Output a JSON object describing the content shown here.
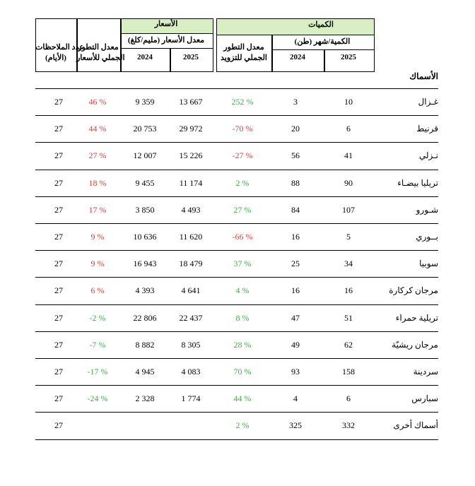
{
  "headers": {
    "prices_group": "الأسعار",
    "quantities_group": "الكميات",
    "price_avg": "معدل الأسعار (مليم/كلغ)",
    "qty_month": "الكمية/شهر (طن)",
    "year_2025": "2025",
    "year_2024": "2024",
    "supply_change_line1": "معدل التطور",
    "supply_change_line2": "الجملي للتزويد",
    "price_change_line1": "معدل التطور",
    "price_change_line2": "الجملي للأسعار",
    "obs_line1": "عدد الملاحظات",
    "obs_line2": "(الأيام)",
    "section": "الأسماك"
  },
  "rows": [
    {
      "name": "غـزال",
      "q2025": "10",
      "q2024": "3",
      "supply": "252 %",
      "supply_sign": "pos",
      "p2025": "13 667",
      "p2024": "9 359",
      "pchange": "46 %",
      "pchange_sign": "neg",
      "obs": "27"
    },
    {
      "name": "قرنيط",
      "q2025": "6",
      "q2024": "20",
      "supply": "-70 %",
      "supply_sign": "neg",
      "p2025": "29 972",
      "p2024": "20 753",
      "pchange": "44 %",
      "pchange_sign": "neg",
      "obs": "27"
    },
    {
      "name": "نـزلي",
      "q2025": "41",
      "q2024": "56",
      "supply": "-27 %",
      "supply_sign": "neg",
      "p2025": "15 226",
      "p2024": "12 007",
      "pchange": "27 %",
      "pchange_sign": "neg",
      "obs": "27"
    },
    {
      "name": "تريليا بيضـاء",
      "q2025": "90",
      "q2024": "88",
      "supply": "2 %",
      "supply_sign": "pos",
      "p2025": "11 174",
      "p2024": "9 455",
      "pchange": "18 %",
      "pchange_sign": "neg",
      "obs": "27"
    },
    {
      "name": "شـورو",
      "q2025": "107",
      "q2024": "84",
      "supply": "27 %",
      "supply_sign": "pos",
      "p2025": "4 493",
      "p2024": "3 850",
      "pchange": "17 %",
      "pchange_sign": "neg",
      "obs": "27"
    },
    {
      "name": "بــوري",
      "q2025": "5",
      "q2024": "16",
      "supply": "-66 %",
      "supply_sign": "neg",
      "p2025": "11 620",
      "p2024": "10 636",
      "pchange": "9 %",
      "pchange_sign": "neg",
      "obs": "27"
    },
    {
      "name": "سوبيا",
      "q2025": "34",
      "q2024": "25",
      "supply": "37 %",
      "supply_sign": "pos",
      "p2025": "18 479",
      "p2024": "16 943",
      "pchange": "9 %",
      "pchange_sign": "neg",
      "obs": "27"
    },
    {
      "name": "مرجان كركارة",
      "q2025": "16",
      "q2024": "16",
      "supply": "4 %",
      "supply_sign": "pos",
      "p2025": "4 641",
      "p2024": "4 393",
      "pchange": "6 %",
      "pchange_sign": "neg",
      "obs": "27"
    },
    {
      "name": "تريلية حمراء",
      "q2025": "51",
      "q2024": "47",
      "supply": "8 %",
      "supply_sign": "pos",
      "p2025": "22 437",
      "p2024": "22 806",
      "pchange": "-2 %",
      "pchange_sign": "pos",
      "obs": "27"
    },
    {
      "name": "مرجان ريشيّة",
      "q2025": "62",
      "q2024": "49",
      "supply": "28 %",
      "supply_sign": "pos",
      "p2025": "8 305",
      "p2024": "8 882",
      "pchange": "-7 %",
      "pchange_sign": "pos",
      "obs": "27"
    },
    {
      "name": "سردينة",
      "q2025": "158",
      "q2024": "93",
      "supply": "70 %",
      "supply_sign": "pos",
      "p2025": "4 083",
      "p2024": "4 945",
      "pchange": "-17 %",
      "pchange_sign": "pos",
      "obs": "27"
    },
    {
      "name": "سبارس",
      "q2025": "6",
      "q2024": "4",
      "supply": "44 %",
      "supply_sign": "pos",
      "p2025": "1 774",
      "p2024": "2 328",
      "pchange": "-24 %",
      "pchange_sign": "pos",
      "obs": "27"
    },
    {
      "name": "أسماك أخرى",
      "q2025": "332",
      "q2024": "325",
      "supply": "2 %",
      "supply_sign": "pos",
      "p2025": "",
      "p2024": "",
      "pchange": "",
      "pchange_sign": "pos",
      "obs": "27"
    }
  ]
}
